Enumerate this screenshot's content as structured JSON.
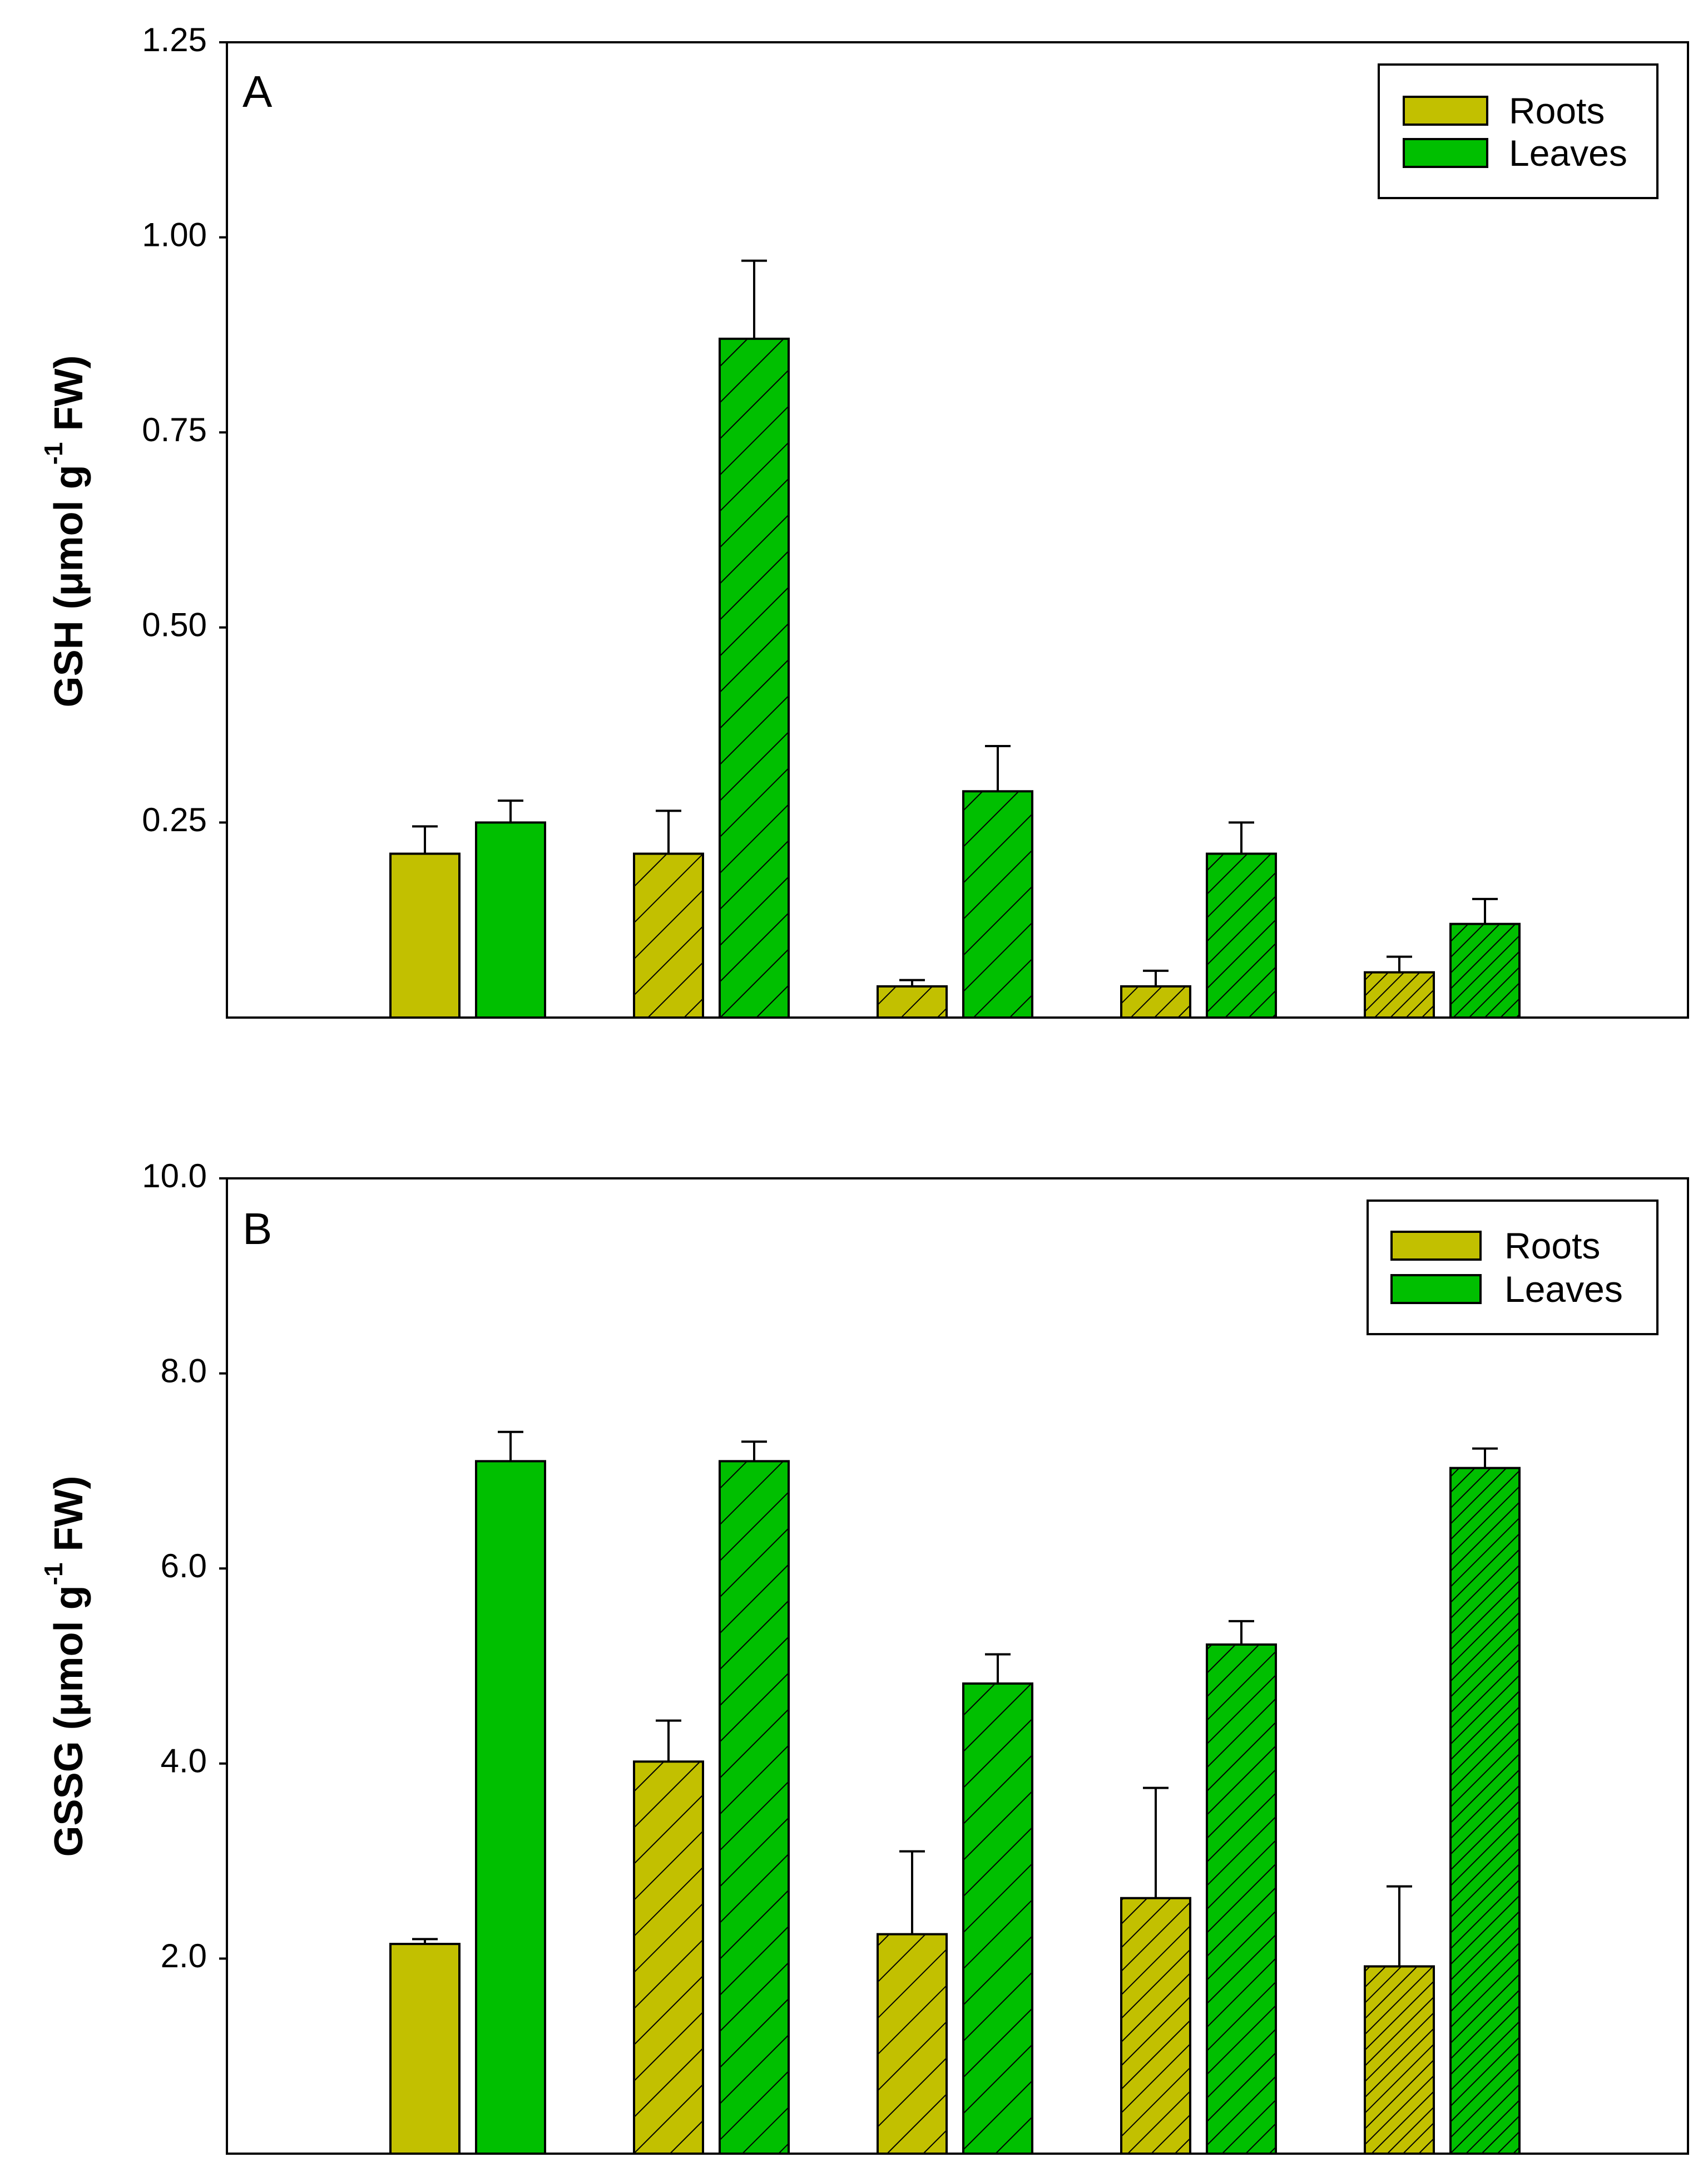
{
  "colors": {
    "roots": "#c2c000",
    "leaves": "#00bf00",
    "ink": "#000000",
    "background": "#ffffff"
  },
  "chart_data": [
    {
      "panel": "A",
      "type": "bar",
      "ylabel_pre": "GSH (μmol g",
      "ylabel_sup": "-1",
      "ylabel_post": " FW)",
      "xlabel": "",
      "ylim": [
        0,
        1.25
      ],
      "yticks": [
        {
          "value": 0.25,
          "label": "0.25"
        },
        {
          "value": 0.5,
          "label": "0.50"
        },
        {
          "value": 0.75,
          "label": "0.75"
        },
        {
          "value": 1.0,
          "label": "1.00"
        },
        {
          "value": 1.25,
          "label": "1.25"
        }
      ],
      "legend": {
        "position": "top-right",
        "entries": [
          "Roots",
          "Leaves"
        ]
      },
      "hatch": [
        "none",
        "wide",
        "wide",
        "medium",
        "dense"
      ],
      "series": [
        {
          "name": "Roots",
          "values": [
            0.21,
            0.21,
            0.04,
            0.04,
            0.058
          ],
          "errors": [
            0.035,
            0.055,
            0.008,
            0.02,
            0.02
          ]
        },
        {
          "name": "Leaves",
          "values": [
            0.25,
            0.87,
            0.29,
            0.21,
            0.12
          ],
          "errors": [
            0.028,
            0.1,
            0.058,
            0.04,
            0.032
          ]
        }
      ]
    },
    {
      "panel": "B",
      "type": "bar",
      "ylabel_pre": "GSSG (μmol g",
      "ylabel_sup": "-1",
      "ylabel_post": " FW)",
      "xlabel": "",
      "ylim": [
        0,
        10
      ],
      "yticks": [
        {
          "value": 2,
          "label": "2.0"
        },
        {
          "value": 4,
          "label": "4.0"
        },
        {
          "value": 6,
          "label": "6.0"
        },
        {
          "value": 8,
          "label": "8.0"
        },
        {
          "value": 10,
          "label": "10.0"
        }
      ],
      "legend": {
        "position": "top-right",
        "entries": [
          "Roots",
          "Leaves"
        ]
      },
      "hatch": [
        "none",
        "wide",
        "wide",
        "medium",
        "dense"
      ],
      "series": [
        {
          "name": "Roots",
          "values": [
            2.15,
            4.02,
            2.25,
            2.62,
            1.92
          ],
          "errors": [
            0.05,
            0.42,
            0.85,
            1.13,
            0.82
          ]
        },
        {
          "name": "Leaves",
          "values": [
            7.1,
            7.1,
            4.82,
            5.22,
            7.03
          ],
          "errors": [
            0.3,
            0.2,
            0.3,
            0.24,
            0.2
          ]
        }
      ]
    }
  ]
}
